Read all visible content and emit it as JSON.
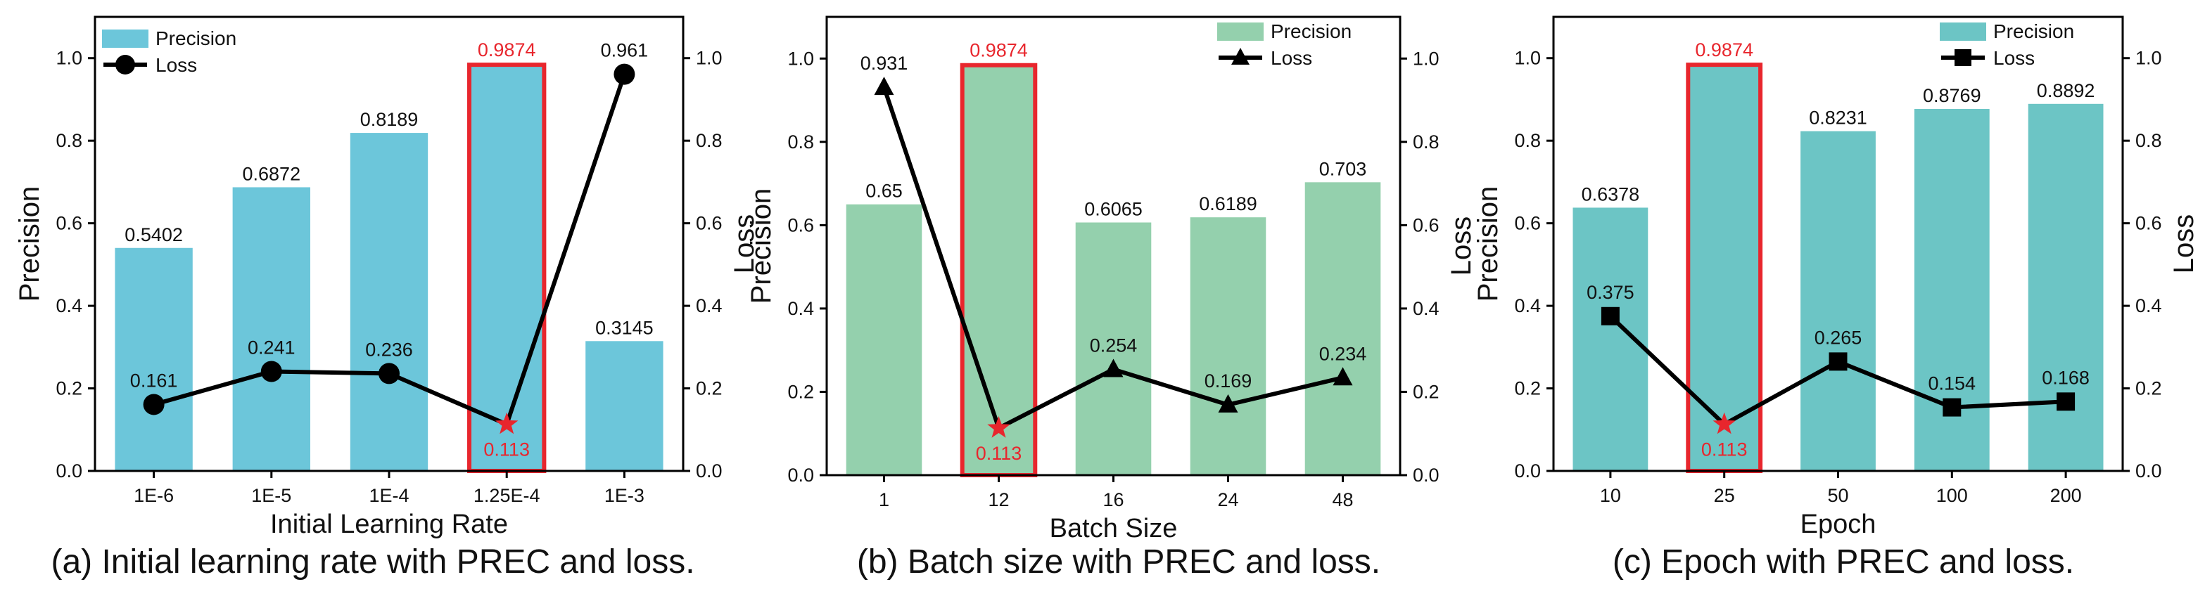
{
  "chart_data": [
    {
      "type": "bar",
      "panel": "a",
      "caption": "(a) Initial learning rate with PREC and loss.",
      "xlabel": "Initial Learning Rate",
      "ylabel": "Precision",
      "y2label": "Loss",
      "categories": [
        "1E-6",
        "1E-5",
        "1E-4",
        "1.25E-4",
        "1E-3"
      ],
      "ylim": [
        0,
        1.1
      ],
      "y2lim": [
        0,
        1.1
      ],
      "yticks": [
        "0.0",
        "0.2",
        "0.4",
        "0.6",
        "0.8",
        "1.0"
      ],
      "y2ticks": [
        "0.0",
        "0.2",
        "0.4",
        "0.6",
        "0.8",
        "1.0"
      ],
      "highlight_index": 3,
      "legend": [
        "Precision",
        "Loss"
      ],
      "legend_position": "top-left",
      "series": [
        {
          "name": "Precision",
          "kind": "bar",
          "color": "#6cc6da",
          "values": [
            0.5402,
            0.6872,
            0.8189,
            0.9874,
            0.3145
          ],
          "labels": [
            "0.5402",
            "0.6872",
            "0.8189",
            "0.9874",
            "0.3145"
          ]
        },
        {
          "name": "Loss",
          "kind": "line",
          "marker": "circle",
          "color": "#000000",
          "values": [
            0.161,
            0.241,
            0.236,
            0.113,
            0.961
          ],
          "labels": [
            "0.161",
            "0.241",
            "0.236",
            "0.113",
            "0.961"
          ]
        }
      ],
      "highlight_color": "#e8262d"
    },
    {
      "type": "bar",
      "panel": "b",
      "caption": "(b) Batch size with PREC and loss.",
      "xlabel": "Batch Size",
      "ylabel": "Precision",
      "y2label": "Loss",
      "categories": [
        "1",
        "12",
        "16",
        "24",
        "48"
      ],
      "ylim": [
        0,
        1.1
      ],
      "y2lim": [
        0,
        1.1
      ],
      "yticks": [
        "0.0",
        "0.2",
        "0.4",
        "0.6",
        "0.8",
        "1.0"
      ],
      "y2ticks": [
        "0.0",
        "0.2",
        "0.4",
        "0.6",
        "0.8",
        "1.0"
      ],
      "highlight_index": 1,
      "legend": [
        "Precision",
        "Loss"
      ],
      "legend_position": "top-right",
      "series": [
        {
          "name": "Precision",
          "kind": "bar",
          "color": "#94d0ad",
          "values": [
            0.65,
            0.9874,
            0.6065,
            0.6189,
            0.703
          ],
          "labels": [
            "0.65",
            "0.9874",
            "0.6065",
            "0.6189",
            "0.703"
          ]
        },
        {
          "name": "Loss",
          "kind": "line",
          "marker": "triangle",
          "color": "#000000",
          "values": [
            0.931,
            0.113,
            0.254,
            0.169,
            0.234
          ],
          "labels": [
            "0.931",
            "0.113",
            "0.254",
            "0.169",
            "0.234"
          ]
        }
      ],
      "highlight_color": "#e8262d"
    },
    {
      "type": "bar",
      "panel": "c",
      "caption": "(c) Epoch with PREC and loss.",
      "xlabel": "Epoch",
      "ylabel": "Precision",
      "y2label": "Loss",
      "categories": [
        "10",
        "25",
        "50",
        "100",
        "200"
      ],
      "ylim": [
        0,
        1.1
      ],
      "y2lim": [
        0,
        1.1
      ],
      "yticks": [
        "0.0",
        "0.2",
        "0.4",
        "0.6",
        "0.8",
        "1.0"
      ],
      "y2ticks": [
        "0.0",
        "0.2",
        "0.4",
        "0.6",
        "0.8",
        "1.0"
      ],
      "highlight_index": 1,
      "legend": [
        "Precision",
        "Loss"
      ],
      "legend_position": "top-right",
      "series": [
        {
          "name": "Precision",
          "kind": "bar",
          "color": "#6cc5c5",
          "values": [
            0.6378,
            0.9874,
            0.8231,
            0.8769,
            0.8892
          ],
          "labels": [
            "0.6378",
            "0.9874",
            "0.8231",
            "0.8769",
            "0.8892"
          ]
        },
        {
          "name": "Loss",
          "kind": "line",
          "marker": "square",
          "color": "#000000",
          "values": [
            0.375,
            0.113,
            0.265,
            0.154,
            0.168
          ],
          "labels": [
            "0.375",
            "0.113",
            "0.265",
            "0.154",
            "0.168"
          ]
        }
      ],
      "highlight_color": "#e8262d"
    }
  ]
}
